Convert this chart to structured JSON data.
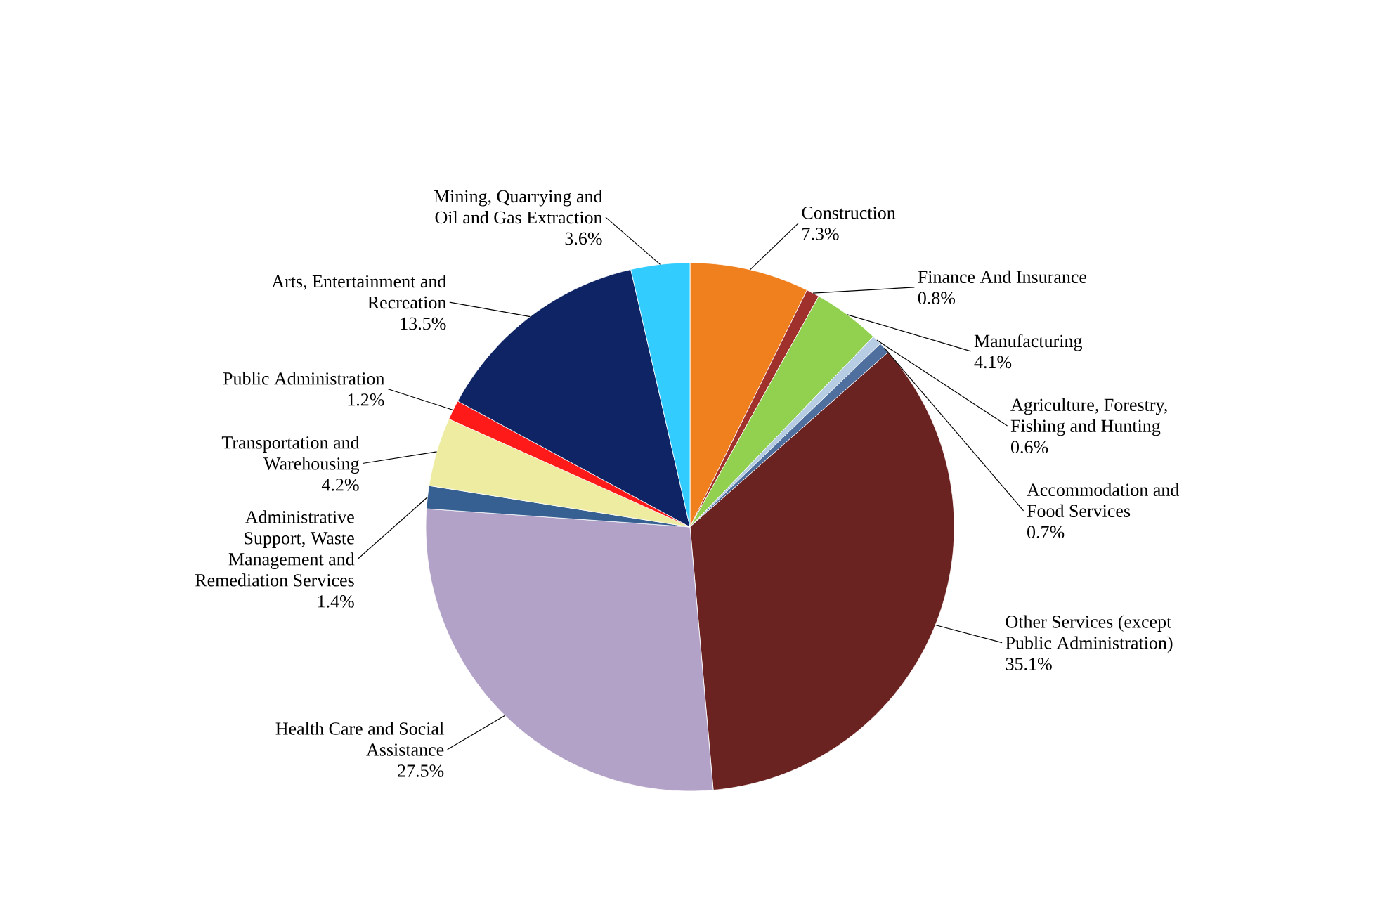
{
  "chart_data": {
    "type": "pie",
    "categories": [
      "Construction",
      "Finance And Insurance",
      "Manufacturing",
      "Agriculture, Forestry, Fishing and Hunting",
      "Accommodation and Food Services",
      "Other Services (except Public Administration)",
      "Health Care and Social Assistance",
      "Administrative Support, Waste Management and Remediation Services",
      "Transportation and Warehousing",
      "Public Administration",
      "Arts, Entertainment and Recreation",
      "Mining, Quarrying and Oil and Gas Extraction"
    ],
    "values": [
      7.3,
      0.8,
      4.1,
      0.6,
      0.7,
      35.1,
      27.5,
      1.4,
      4.2,
      1.2,
      13.5,
      3.6
    ],
    "value_labels": [
      "7.3%",
      "0.8%",
      "4.1%",
      "0.6%",
      "0.7%",
      "35.1%",
      "27.5%",
      "1.4%",
      "4.2%",
      "1.2%",
      "13.5%",
      "3.6%"
    ],
    "colors": [
      "#f07f1e",
      "#a0302c",
      "#92d050",
      "#b7cde3",
      "#4f6f9f",
      "#6b2321",
      "#b3a2c7",
      "#376092",
      "#eeeca1",
      "#ff1a1a",
      "#0f2465",
      "#33ccff"
    ]
  }
}
